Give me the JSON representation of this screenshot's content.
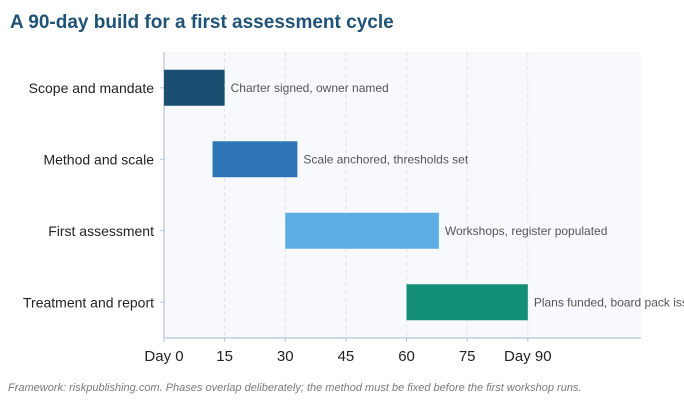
{
  "title": "A 90-day build for a first assessment cycle",
  "footnote": "Framework: riskpublishing.com. Phases overlap deliberately; the method must be fixed before the first workshop runs.",
  "colors": {
    "plot_background": "#f8f9fc",
    "axis": "#b7c3d6",
    "grid": "#dde3ec",
    "title": "#1f5277"
  },
  "chart_data": {
    "type": "bar",
    "orientation": "horizontal-gantt",
    "xlim": [
      0,
      118
    ],
    "x_ticks": [
      0,
      15,
      30,
      45,
      60,
      75,
      90
    ],
    "x_tick_labels": [
      "Day 0",
      "15",
      "30",
      "45",
      "60",
      "75",
      "Day 90"
    ],
    "grid": "vertical-dashed",
    "xlabel": "",
    "ylabel": "",
    "tasks": [
      {
        "name": "Scope and mandate",
        "start": 0,
        "end": 15,
        "label": "Charter signed, owner named",
        "color": "#1b4f72"
      },
      {
        "name": "Method and scale",
        "start": 12,
        "end": 33,
        "label": "Scale anchored, thresholds set",
        "color": "#2e75b6"
      },
      {
        "name": "First assessment",
        "start": 30,
        "end": 68,
        "label": "Workshops, register populated",
        "color": "#5dade2"
      },
      {
        "name": "Treatment and report",
        "start": 60,
        "end": 90,
        "label": "Plans funded, board pack issued",
        "color": "#148f77"
      }
    ]
  }
}
